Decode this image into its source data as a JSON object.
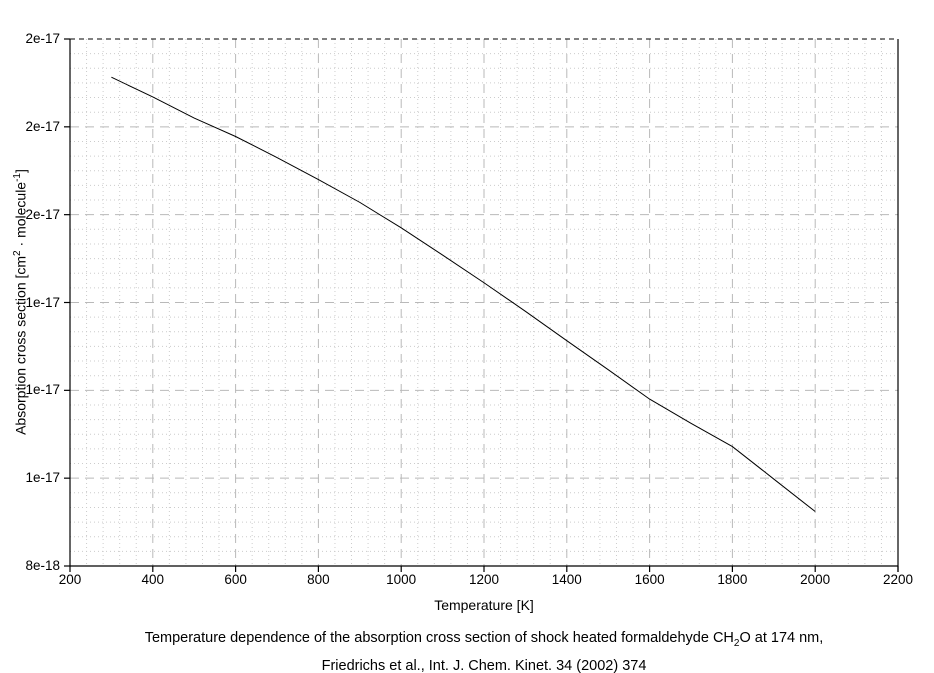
{
  "chart_data": {
    "type": "line",
    "title": "",
    "xlabel": "Temperature [K]",
    "ylabel_parts": {
      "pre": "Absorption cross section [cm",
      "sup1": "2",
      "mid": " · molecule",
      "sup2": "-1",
      "post": "]"
    },
    "xlim": [
      200,
      2200
    ],
    "ylim": [
      8e-18,
      2e-17
    ],
    "x_ticks": [
      200,
      400,
      600,
      800,
      1000,
      1200,
      1400,
      1600,
      1800,
      2000,
      2200
    ],
    "x_tick_labels": [
      "200",
      "400",
      "600",
      "800",
      "1000",
      "1200",
      "1400",
      "1600",
      "1800",
      "2000",
      "2200"
    ],
    "y_ticks": [
      8e-18,
      1e-17,
      1.2e-17,
      1.4e-17,
      1.6e-17,
      1.8e-17,
      2e-17
    ],
    "y_tick_labels": [
      "8e-18",
      "1e-17",
      "1e-17",
      "1e-17",
      "2e-17",
      "2e-17",
      "2e-17"
    ],
    "x_minor_step": 40,
    "y_minor_divisions": 6,
    "grid": true,
    "legend": "none",
    "series": [
      {
        "name": "absorption-cross-section",
        "x": [
          300,
          400,
          500,
          600,
          700,
          800,
          900,
          1000,
          1100,
          1200,
          1300,
          1400,
          1500,
          1600,
          1700,
          1800,
          1900,
          2000
        ],
        "y": [
          1.913e-17,
          1.868e-17,
          1.82e-17,
          1.778e-17,
          1.73e-17,
          1.68e-17,
          1.628e-17,
          1.57e-17,
          1.508e-17,
          1.445e-17,
          1.38e-17,
          1.313e-17,
          1.247e-17,
          1.18e-17,
          1.125e-17,
          1.072e-17,
          9.98e-18,
          9.24e-18
        ]
      }
    ],
    "colors": {
      "background": "#ffffff",
      "axis": "#000000",
      "curve": "#000000",
      "major_grid": "#b9b9b9",
      "minor_grid": "#cccccc",
      "top_grid": "#000000"
    }
  },
  "caption": {
    "line1_pre": "Temperature dependence of the absorption cross section of shock heated formaldehyde CH",
    "line1_sub": "2",
    "line1_post": "O at 174 nm,",
    "line2": "Friedrichs et al., Int. J. Chem. Kinet. 34 (2002) 374"
  }
}
